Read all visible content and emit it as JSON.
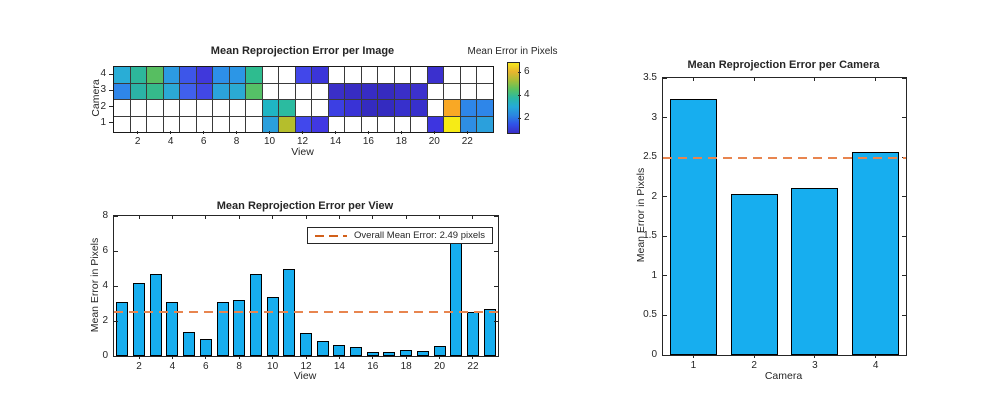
{
  "colors": {
    "background": "#ffffff",
    "text": "#262626",
    "axis": "#262626",
    "grid_line": "#3a3a3a",
    "bar_fill": "#17AEEF",
    "bar_edge": "#000000",
    "mean_line": "#E8854F",
    "legend_line": "#D2601A",
    "empty_cell": "#ffffff"
  },
  "chart_data": [
    {
      "id": "per_image",
      "type": "heatmap",
      "title": "Mean Reprojection Error per Image",
      "xlabel": "View",
      "ylabel": "Camera",
      "x_ticks": [
        2,
        4,
        6,
        8,
        10,
        12,
        14,
        16,
        18,
        20,
        22
      ],
      "row_labels": [
        "4",
        "3",
        "2",
        "1"
      ],
      "num_views": 23,
      "values": [
        [
          3.4,
          4.0,
          4.8,
          3.1,
          2.1,
          1.6,
          2.8,
          2.9,
          4.3,
          null,
          null,
          1.9,
          1.6,
          null,
          null,
          null,
          null,
          null,
          null,
          1.3,
          null,
          null,
          null
        ],
        [
          2.7,
          3.9,
          4.3,
          3.3,
          2.1,
          1.9,
          3.2,
          3.3,
          4.7,
          null,
          null,
          null,
          null,
          1.2,
          1.1,
          1.1,
          1.0,
          1.2,
          1.3,
          null,
          null,
          null,
          null
        ],
        [
          null,
          null,
          null,
          null,
          null,
          null,
          null,
          null,
          null,
          3.6,
          4.1,
          null,
          null,
          1.8,
          1.3,
          1.0,
          1.0,
          1.2,
          1.1,
          null,
          6.4,
          2.7,
          2.7
        ],
        [
          null,
          null,
          null,
          null,
          null,
          null,
          null,
          null,
          null,
          3.0,
          6.0,
          2.0,
          1.8,
          null,
          null,
          null,
          null,
          null,
          null,
          1.7,
          6.9,
          2.8,
          3.2
        ]
      ],
      "cell_colors": [
        [
          "#29ADD6",
          "#2DB79B",
          "#57BE61",
          "#2C9BE2",
          "#3D56E9",
          "#4038DB",
          "#2D8FE9",
          "#2C96E6",
          "#2EBC8F",
          null,
          null,
          "#4247EA",
          "#3B35D9",
          null,
          null,
          null,
          null,
          null,
          null,
          "#3B30CE",
          null,
          null,
          null
        ],
        [
          "#2F86E9",
          "#2BB3A6",
          "#35BA8B",
          "#2BA9D6",
          "#4060ED",
          "#4148E5",
          "#2BA3DB",
          "#2BAAD3",
          "#55C167",
          null,
          null,
          null,
          null,
          "#3A2FC8",
          "#372CC2",
          "#372CC4",
          "#362BBF",
          "#3A2FC8",
          "#3C31CD",
          null,
          null,
          null,
          null
        ],
        [
          null,
          null,
          null,
          null,
          null,
          null,
          null,
          null,
          null,
          "#1FB5C4",
          "#2BBBA0",
          null,
          null,
          "#3C3FE3",
          "#3933D6",
          "#342BC0",
          "#342BC0",
          "#3730CC",
          "#3730CC",
          null,
          "#F9A825",
          "#2E86E9",
          "#2E86E9"
        ],
        [
          null,
          null,
          null,
          null,
          null,
          null,
          null,
          null,
          null,
          "#2B9FDC",
          "#B5BE2C",
          "#4148EC",
          "#4138E3",
          null,
          null,
          null,
          null,
          null,
          null,
          "#3D35E0",
          "#F6EB16",
          "#2E8EE4",
          "#2BA0DC"
        ]
      ],
      "colorbar": {
        "label": "Mean Error in Pixels",
        "ticks": [
          2,
          4,
          6
        ],
        "range": [
          0.8,
          6.9
        ],
        "gradient_bottom_to_top": [
          "#3A2EC8",
          "#3052E8",
          "#2A86E0",
          "#25AAD8",
          "#2BB9A4",
          "#5BC25F",
          "#A8BE38",
          "#E8B52E",
          "#F6E81C"
        ]
      }
    },
    {
      "id": "per_view",
      "type": "bar",
      "title": "Mean Reprojection Error per View",
      "xlabel": "View",
      "ylabel": "Mean Error in Pixels",
      "categories": [
        1,
        2,
        3,
        4,
        5,
        6,
        7,
        8,
        9,
        10,
        11,
        12,
        13,
        14,
        15,
        16,
        17,
        18,
        19,
        20,
        21,
        22,
        23
      ],
      "values": [
        3.1,
        4.2,
        4.7,
        3.1,
        1.4,
        1.0,
        3.1,
        3.2,
        4.7,
        3.4,
        5.0,
        1.3,
        0.85,
        0.65,
        0.5,
        0.25,
        0.25,
        0.35,
        0.3,
        0.6,
        6.7,
        2.5,
        2.7
      ],
      "x_ticks": [
        2,
        4,
        6,
        8,
        10,
        12,
        14,
        16,
        18,
        20,
        22
      ],
      "y_ticks": [
        "0",
        "2",
        "4",
        "6",
        "8"
      ],
      "ylim": [
        0,
        8
      ],
      "mean_line": {
        "value": 2.49,
        "label": "Overall Mean Error: 2.49 pixels",
        "show_legend": true
      }
    },
    {
      "id": "per_camera",
      "type": "bar",
      "title": "Mean Reprojection Error per Camera",
      "xlabel": "Camera",
      "ylabel": "Mean Error in Pixels",
      "categories": [
        1,
        2,
        3,
        4
      ],
      "values": [
        3.24,
        2.03,
        2.11,
        2.56
      ],
      "x_ticks": [
        1,
        2,
        3,
        4
      ],
      "y_ticks": [
        "0",
        "0.5",
        "1",
        "1.5",
        "2",
        "2.5",
        "3",
        "3.5"
      ],
      "ylim": [
        0,
        3.5
      ],
      "mean_line": {
        "value": 2.49,
        "show_legend": false
      }
    }
  ]
}
